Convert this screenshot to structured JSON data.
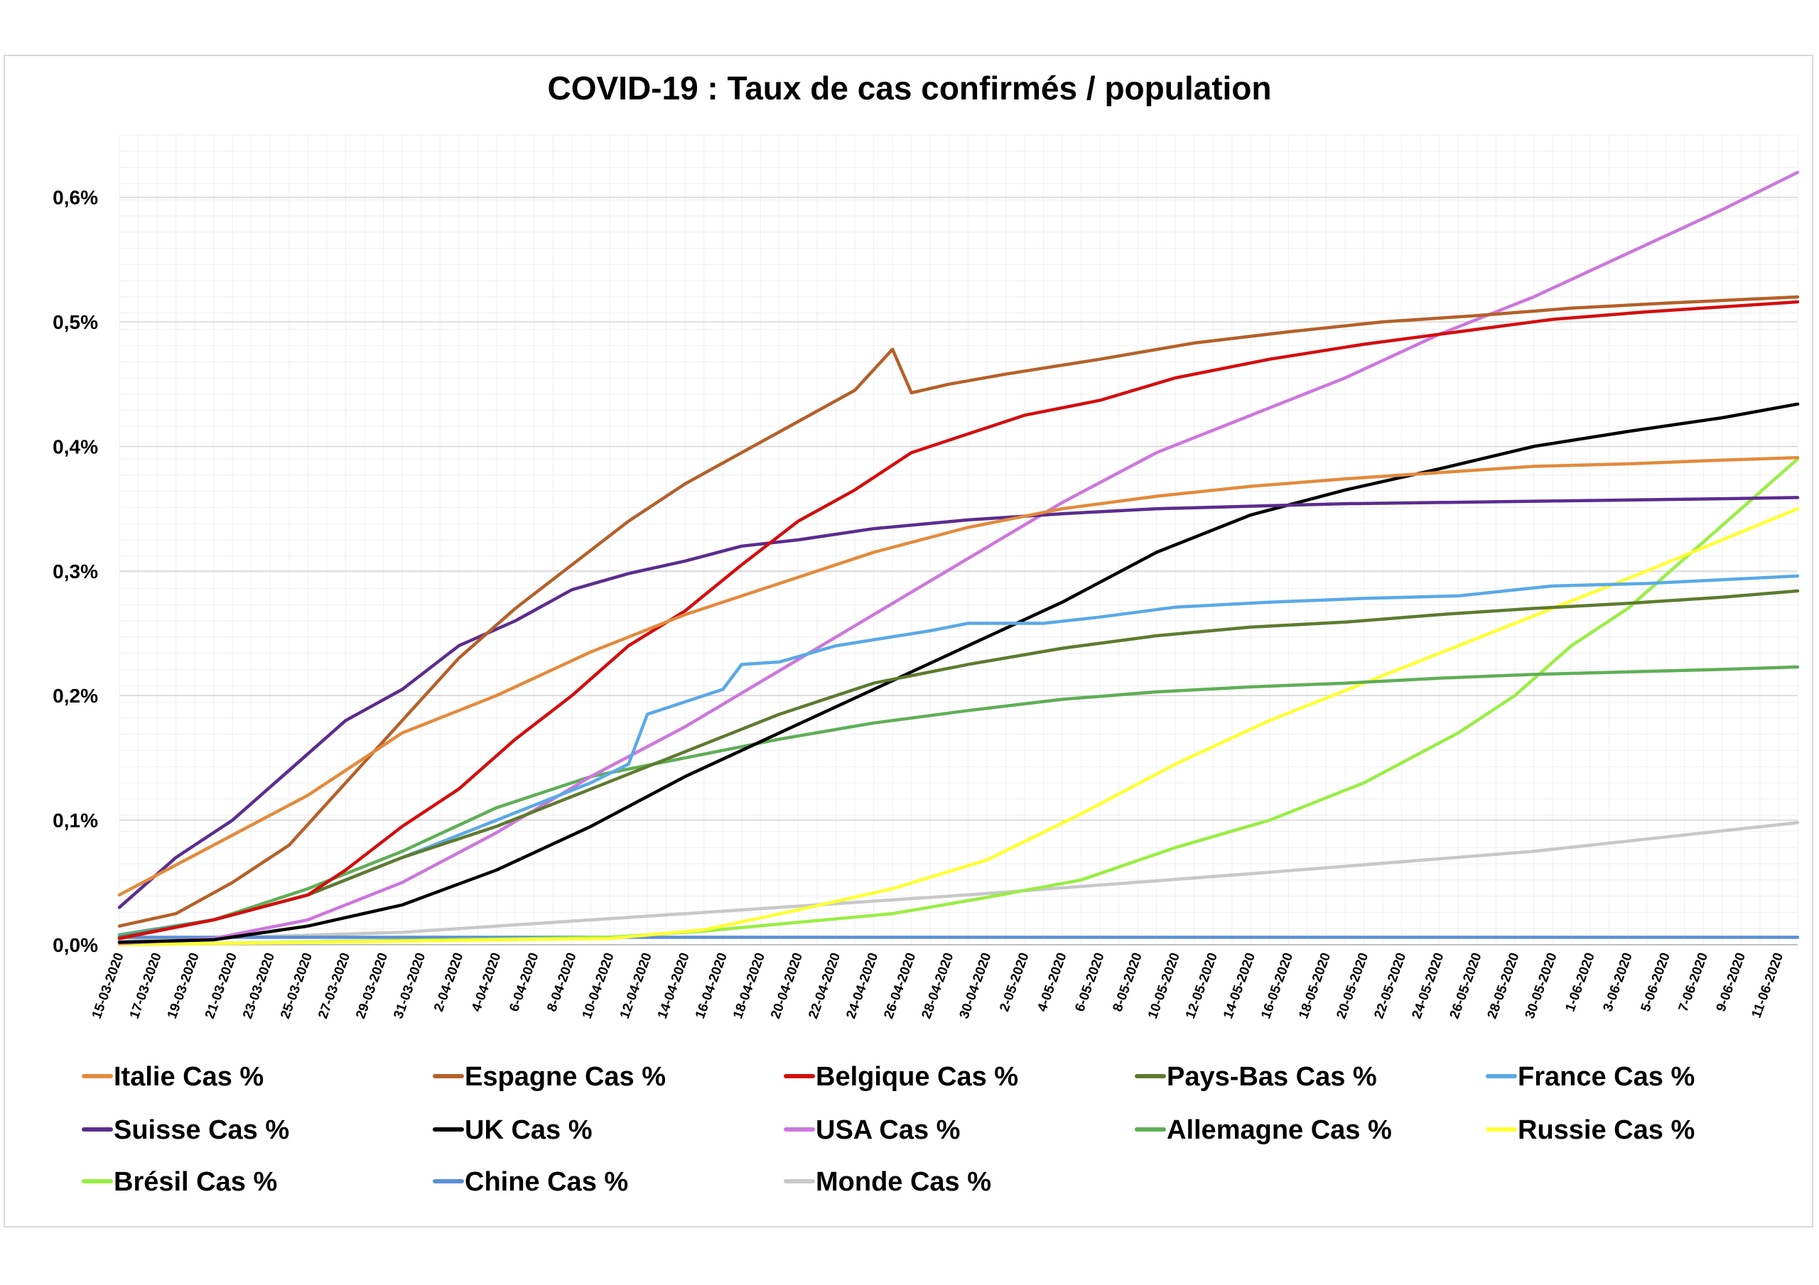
{
  "chart_data": {
    "type": "line",
    "title": "COVID-19 : Taux de cas confirmés / population",
    "xlabel": "",
    "ylabel": "",
    "ylim": [
      0,
      0.65
    ],
    "y_ticks": [
      0,
      0.1,
      0.2,
      0.3,
      0.4,
      0.5,
      0.6
    ],
    "y_tick_labels": [
      "0,0%",
      "0,1%",
      "0,2%",
      "0,3%",
      "0,4%",
      "0,5%",
      "0,6%"
    ],
    "x_range": [
      "15-03-2020",
      "12-06-2020"
    ],
    "x_tick_labels": [
      "15-03-2020",
      "17-03-2020",
      "19-03-2020",
      "21-03-2020",
      "23-03-2020",
      "25-03-2020",
      "27-03-2020",
      "29-03-2020",
      "31-03-2020",
      "2-04-2020",
      "4-04-2020",
      "6-04-2020",
      "8-04-2020",
      "10-04-2020",
      "12-04-2020",
      "14-04-2020",
      "16-04-2020",
      "18-04-2020",
      "20-04-2020",
      "22-04-2020",
      "24-04-2020",
      "26-04-2020",
      "28-04-2020",
      "30-04-2020",
      "2-05-2020",
      "4-05-2020",
      "6-05-2020",
      "8-05-2020",
      "10-05-2020",
      "12-05-2020",
      "14-05-2020",
      "16-05-2020",
      "18-05-2020",
      "20-05-2020",
      "22-05-2020",
      "24-05-2020",
      "26-05-2020",
      "28-05-2020",
      "30-05-2020",
      "1-06-2020",
      "3-06-2020",
      "5-06-2020",
      "7-06-2020",
      "9-06-2020",
      "11-06-2020"
    ],
    "grid": true,
    "legend_position": "bottom",
    "series": [
      {
        "name": "Italie Cas %",
        "color": "#E38A3D",
        "points": [
          [
            "15-03-2020",
            0.04
          ],
          [
            "20-03-2020",
            0.08
          ],
          [
            "25-03-2020",
            0.12
          ],
          [
            "30-03-2020",
            0.17
          ],
          [
            "4-04-2020",
            0.2
          ],
          [
            "9-04-2020",
            0.235
          ],
          [
            "14-04-2020",
            0.265
          ],
          [
            "19-04-2020",
            0.29
          ],
          [
            "24-04-2020",
            0.315
          ],
          [
            "29-04-2020",
            0.335
          ],
          [
            "4-05-2020",
            0.35
          ],
          [
            "9-05-2020",
            0.36
          ],
          [
            "14-05-2020",
            0.368
          ],
          [
            "19-05-2020",
            0.374
          ],
          [
            "24-05-2020",
            0.379
          ],
          [
            "29-05-2020",
            0.384
          ],
          [
            "3-06-2020",
            0.386
          ],
          [
            "8-06-2020",
            0.389
          ],
          [
            "12-06-2020",
            0.391
          ]
        ]
      },
      {
        "name": "Espagne Cas %",
        "color": "#B5602A",
        "points": [
          [
            "15-03-2020",
            0.015
          ],
          [
            "18-03-2020",
            0.025
          ],
          [
            "21-03-2020",
            0.05
          ],
          [
            "24-03-2020",
            0.08
          ],
          [
            "27-03-2020",
            0.13
          ],
          [
            "30-03-2020",
            0.18
          ],
          [
            "2-04-2020",
            0.23
          ],
          [
            "5-04-2020",
            0.27
          ],
          [
            "8-04-2020",
            0.305
          ],
          [
            "11-04-2020",
            0.34
          ],
          [
            "14-04-2020",
            0.37
          ],
          [
            "17-04-2020",
            0.395
          ],
          [
            "20-04-2020",
            0.42
          ],
          [
            "23-04-2020",
            0.445
          ],
          [
            "25-04-2020",
            0.478
          ],
          [
            "26-04-2020",
            0.443
          ],
          [
            "28-04-2020",
            0.45
          ],
          [
            "1-05-2020",
            0.458
          ],
          [
            "6-05-2020",
            0.47
          ],
          [
            "11-05-2020",
            0.483
          ],
          [
            "16-05-2020",
            0.492
          ],
          [
            "21-05-2020",
            0.5
          ],
          [
            "26-05-2020",
            0.505
          ],
          [
            "31-05-2020",
            0.511
          ],
          [
            "5-06-2020",
            0.515
          ],
          [
            "12-06-2020",
            0.52
          ]
        ]
      },
      {
        "name": "Belgique Cas %",
        "color": "#D30E0E",
        "points": [
          [
            "15-03-2020",
            0.005
          ],
          [
            "20-03-2020",
            0.02
          ],
          [
            "25-03-2020",
            0.04
          ],
          [
            "27-03-2020",
            0.06
          ],
          [
            "30-03-2020",
            0.095
          ],
          [
            "2-04-2020",
            0.125
          ],
          [
            "5-04-2020",
            0.165
          ],
          [
            "8-04-2020",
            0.2
          ],
          [
            "11-04-2020",
            0.24
          ],
          [
            "14-04-2020",
            0.268
          ],
          [
            "17-04-2020",
            0.305
          ],
          [
            "20-04-2020",
            0.34
          ],
          [
            "23-04-2020",
            0.365
          ],
          [
            "26-04-2020",
            0.395
          ],
          [
            "29-04-2020",
            0.41
          ],
          [
            "2-05-2020",
            0.425
          ],
          [
            "6-05-2020",
            0.437
          ],
          [
            "10-05-2020",
            0.455
          ],
          [
            "15-05-2020",
            0.47
          ],
          [
            "20-05-2020",
            0.482
          ],
          [
            "25-05-2020",
            0.492
          ],
          [
            "30-05-2020",
            0.502
          ],
          [
            "4-06-2020",
            0.508
          ],
          [
            "12-06-2020",
            0.516
          ]
        ]
      },
      {
        "name": "Pays-Bas Cas %",
        "color": "#5E7A2F",
        "points": [
          [
            "15-03-2020",
            0.006
          ],
          [
            "20-03-2020",
            0.02
          ],
          [
            "25-03-2020",
            0.04
          ],
          [
            "30-03-2020",
            0.07
          ],
          [
            "4-04-2020",
            0.095
          ],
          [
            "9-04-2020",
            0.125
          ],
          [
            "14-04-2020",
            0.155
          ],
          [
            "19-04-2020",
            0.185
          ],
          [
            "24-04-2020",
            0.21
          ],
          [
            "29-04-2020",
            0.225
          ],
          [
            "4-05-2020",
            0.238
          ],
          [
            "9-05-2020",
            0.248
          ],
          [
            "14-05-2020",
            0.255
          ],
          [
            "19-05-2020",
            0.259
          ],
          [
            "24-05-2020",
            0.265
          ],
          [
            "29-05-2020",
            0.27
          ],
          [
            "3-06-2020",
            0.274
          ],
          [
            "8-06-2020",
            0.279
          ],
          [
            "12-06-2020",
            0.284
          ]
        ]
      },
      {
        "name": "France Cas %",
        "color": "#5AA9E6",
        "points": [
          [
            "15-03-2020",
            0.007
          ],
          [
            "20-03-2020",
            0.02
          ],
          [
            "25-03-2020",
            0.04
          ],
          [
            "30-03-2020",
            0.07
          ],
          [
            "4-04-2020",
            0.1
          ],
          [
            "9-04-2020",
            0.13
          ],
          [
            "11-04-2020",
            0.145
          ],
          [
            "12-04-2020",
            0.185
          ],
          [
            "14-04-2020",
            0.195
          ],
          [
            "16-04-2020",
            0.205
          ],
          [
            "17-04-2020",
            0.225
          ],
          [
            "19-04-2020",
            0.227
          ],
          [
            "22-04-2020",
            0.24
          ],
          [
            "27-04-2020",
            0.252
          ],
          [
            "29-04-2020",
            0.258
          ],
          [
            "3-05-2020",
            0.258
          ],
          [
            "6-05-2020",
            0.263
          ],
          [
            "10-05-2020",
            0.271
          ],
          [
            "15-05-2020",
            0.275
          ],
          [
            "20-05-2020",
            0.278
          ],
          [
            "25-05-2020",
            0.28
          ],
          [
            "30-05-2020",
            0.288
          ],
          [
            "4-06-2020",
            0.29
          ],
          [
            "8-06-2020",
            0.293
          ],
          [
            "12-06-2020",
            0.296
          ]
        ]
      },
      {
        "name": "Suisse Cas %",
        "color": "#5B2C8E",
        "points": [
          [
            "15-03-2020",
            0.03
          ],
          [
            "18-03-2020",
            0.07
          ],
          [
            "21-03-2020",
            0.1
          ],
          [
            "24-03-2020",
            0.14
          ],
          [
            "27-03-2020",
            0.18
          ],
          [
            "30-03-2020",
            0.205
          ],
          [
            "2-04-2020",
            0.24
          ],
          [
            "5-04-2020",
            0.26
          ],
          [
            "8-04-2020",
            0.285
          ],
          [
            "11-04-2020",
            0.298
          ],
          [
            "14-04-2020",
            0.308
          ],
          [
            "17-04-2020",
            0.32
          ],
          [
            "20-04-2020",
            0.325
          ],
          [
            "24-04-2020",
            0.334
          ],
          [
            "29-04-2020",
            0.341
          ],
          [
            "4-05-2020",
            0.346
          ],
          [
            "9-05-2020",
            0.35
          ],
          [
            "14-05-2020",
            0.352
          ],
          [
            "19-05-2020",
            0.354
          ],
          [
            "24-05-2020",
            0.355
          ],
          [
            "29-05-2020",
            0.356
          ],
          [
            "3-06-2020",
            0.357
          ],
          [
            "8-06-2020",
            0.358
          ],
          [
            "12-06-2020",
            0.359
          ]
        ]
      },
      {
        "name": "UK Cas %",
        "color": "#000000",
        "points": [
          [
            "15-03-2020",
            0.002
          ],
          [
            "20-03-2020",
            0.004
          ],
          [
            "25-03-2020",
            0.015
          ],
          [
            "30-03-2020",
            0.032
          ],
          [
            "4-04-2020",
            0.06
          ],
          [
            "9-04-2020",
            0.095
          ],
          [
            "14-04-2020",
            0.135
          ],
          [
            "19-04-2020",
            0.17
          ],
          [
            "24-04-2020",
            0.205
          ],
          [
            "29-04-2020",
            0.24
          ],
          [
            "4-05-2020",
            0.275
          ],
          [
            "9-05-2020",
            0.315
          ],
          [
            "14-05-2020",
            0.345
          ],
          [
            "19-05-2020",
            0.365
          ],
          [
            "24-05-2020",
            0.382
          ],
          [
            "29-05-2020",
            0.4
          ],
          [
            "3-06-2020",
            0.412
          ],
          [
            "8-06-2020",
            0.423
          ],
          [
            "12-06-2020",
            0.434
          ]
        ]
      },
      {
        "name": "USA Cas %",
        "color": "#CC77DD",
        "points": [
          [
            "15-03-2020",
            0.001
          ],
          [
            "20-03-2020",
            0.005
          ],
          [
            "25-03-2020",
            0.02
          ],
          [
            "30-03-2020",
            0.05
          ],
          [
            "4-04-2020",
            0.09
          ],
          [
            "9-04-2020",
            0.135
          ],
          [
            "14-04-2020",
            0.175
          ],
          [
            "19-04-2020",
            0.22
          ],
          [
            "24-04-2020",
            0.265
          ],
          [
            "29-04-2020",
            0.31
          ],
          [
            "4-05-2020",
            0.355
          ],
          [
            "9-05-2020",
            0.395
          ],
          [
            "14-05-2020",
            0.425
          ],
          [
            "19-05-2020",
            0.455
          ],
          [
            "24-05-2020",
            0.49
          ],
          [
            "29-05-2020",
            0.52
          ],
          [
            "3-06-2020",
            0.555
          ],
          [
            "8-06-2020",
            0.59
          ],
          [
            "12-06-2020",
            0.62
          ]
        ]
      },
      {
        "name": "Allemagne Cas %",
        "color": "#5FAE57",
        "points": [
          [
            "15-03-2020",
            0.008
          ],
          [
            "20-03-2020",
            0.02
          ],
          [
            "25-03-2020",
            0.045
          ],
          [
            "30-03-2020",
            0.075
          ],
          [
            "4-04-2020",
            0.11
          ],
          [
            "9-04-2020",
            0.135
          ],
          [
            "14-04-2020",
            0.15
          ],
          [
            "19-04-2020",
            0.165
          ],
          [
            "24-04-2020",
            0.178
          ],
          [
            "29-04-2020",
            0.188
          ],
          [
            "4-05-2020",
            0.197
          ],
          [
            "9-05-2020",
            0.203
          ],
          [
            "14-05-2020",
            0.207
          ],
          [
            "19-05-2020",
            0.21
          ],
          [
            "24-05-2020",
            0.214
          ],
          [
            "29-05-2020",
            0.217
          ],
          [
            "3-06-2020",
            0.219
          ],
          [
            "8-06-2020",
            0.221
          ],
          [
            "12-06-2020",
            0.223
          ]
        ]
      },
      {
        "name": "Russie Cas %",
        "color": "#FFFF33",
        "points": [
          [
            "15-03-2020",
            0.0
          ],
          [
            "10-04-2020",
            0.005
          ],
          [
            "15-04-2020",
            0.012
          ],
          [
            "20-04-2020",
            0.028
          ],
          [
            "25-04-2020",
            0.045
          ],
          [
            "30-04-2020",
            0.068
          ],
          [
            "5-05-2020",
            0.105
          ],
          [
            "10-05-2020",
            0.145
          ],
          [
            "15-05-2020",
            0.18
          ],
          [
            "20-05-2020",
            0.21
          ],
          [
            "25-05-2020",
            0.24
          ],
          [
            "30-05-2020",
            0.27
          ],
          [
            "4-06-2020",
            0.3
          ],
          [
            "8-06-2020",
            0.325
          ],
          [
            "12-06-2020",
            0.35
          ]
        ]
      },
      {
        "name": "Brésil Cas %",
        "color": "#99EE44",
        "points": [
          [
            "15-03-2020",
            0.0
          ],
          [
            "10-04-2020",
            0.006
          ],
          [
            "15-04-2020",
            0.011
          ],
          [
            "20-04-2020",
            0.018
          ],
          [
            "25-04-2020",
            0.025
          ],
          [
            "30-04-2020",
            0.038
          ],
          [
            "5-05-2020",
            0.052
          ],
          [
            "10-05-2020",
            0.078
          ],
          [
            "15-05-2020",
            0.1
          ],
          [
            "20-05-2020",
            0.13
          ],
          [
            "25-05-2020",
            0.17
          ],
          [
            "28-05-2020",
            0.2
          ],
          [
            "31-05-2020",
            0.24
          ],
          [
            "3-06-2020",
            0.27
          ],
          [
            "6-06-2020",
            0.31
          ],
          [
            "9-06-2020",
            0.35
          ],
          [
            "12-06-2020",
            0.39
          ]
        ]
      },
      {
        "name": "Chine Cas %",
        "color": "#5B8FD6",
        "points": [
          [
            "15-03-2020",
            0.006
          ],
          [
            "12-06-2020",
            0.006
          ]
        ]
      },
      {
        "name": "Monde Cas %",
        "color": "#C8C8C8",
        "points": [
          [
            "15-03-2020",
            0.003
          ],
          [
            "30-03-2020",
            0.01
          ],
          [
            "14-04-2020",
            0.025
          ],
          [
            "29-04-2020",
            0.04
          ],
          [
            "14-05-2020",
            0.057
          ],
          [
            "29-05-2020",
            0.075
          ],
          [
            "12-06-2020",
            0.098
          ]
        ]
      }
    ]
  }
}
